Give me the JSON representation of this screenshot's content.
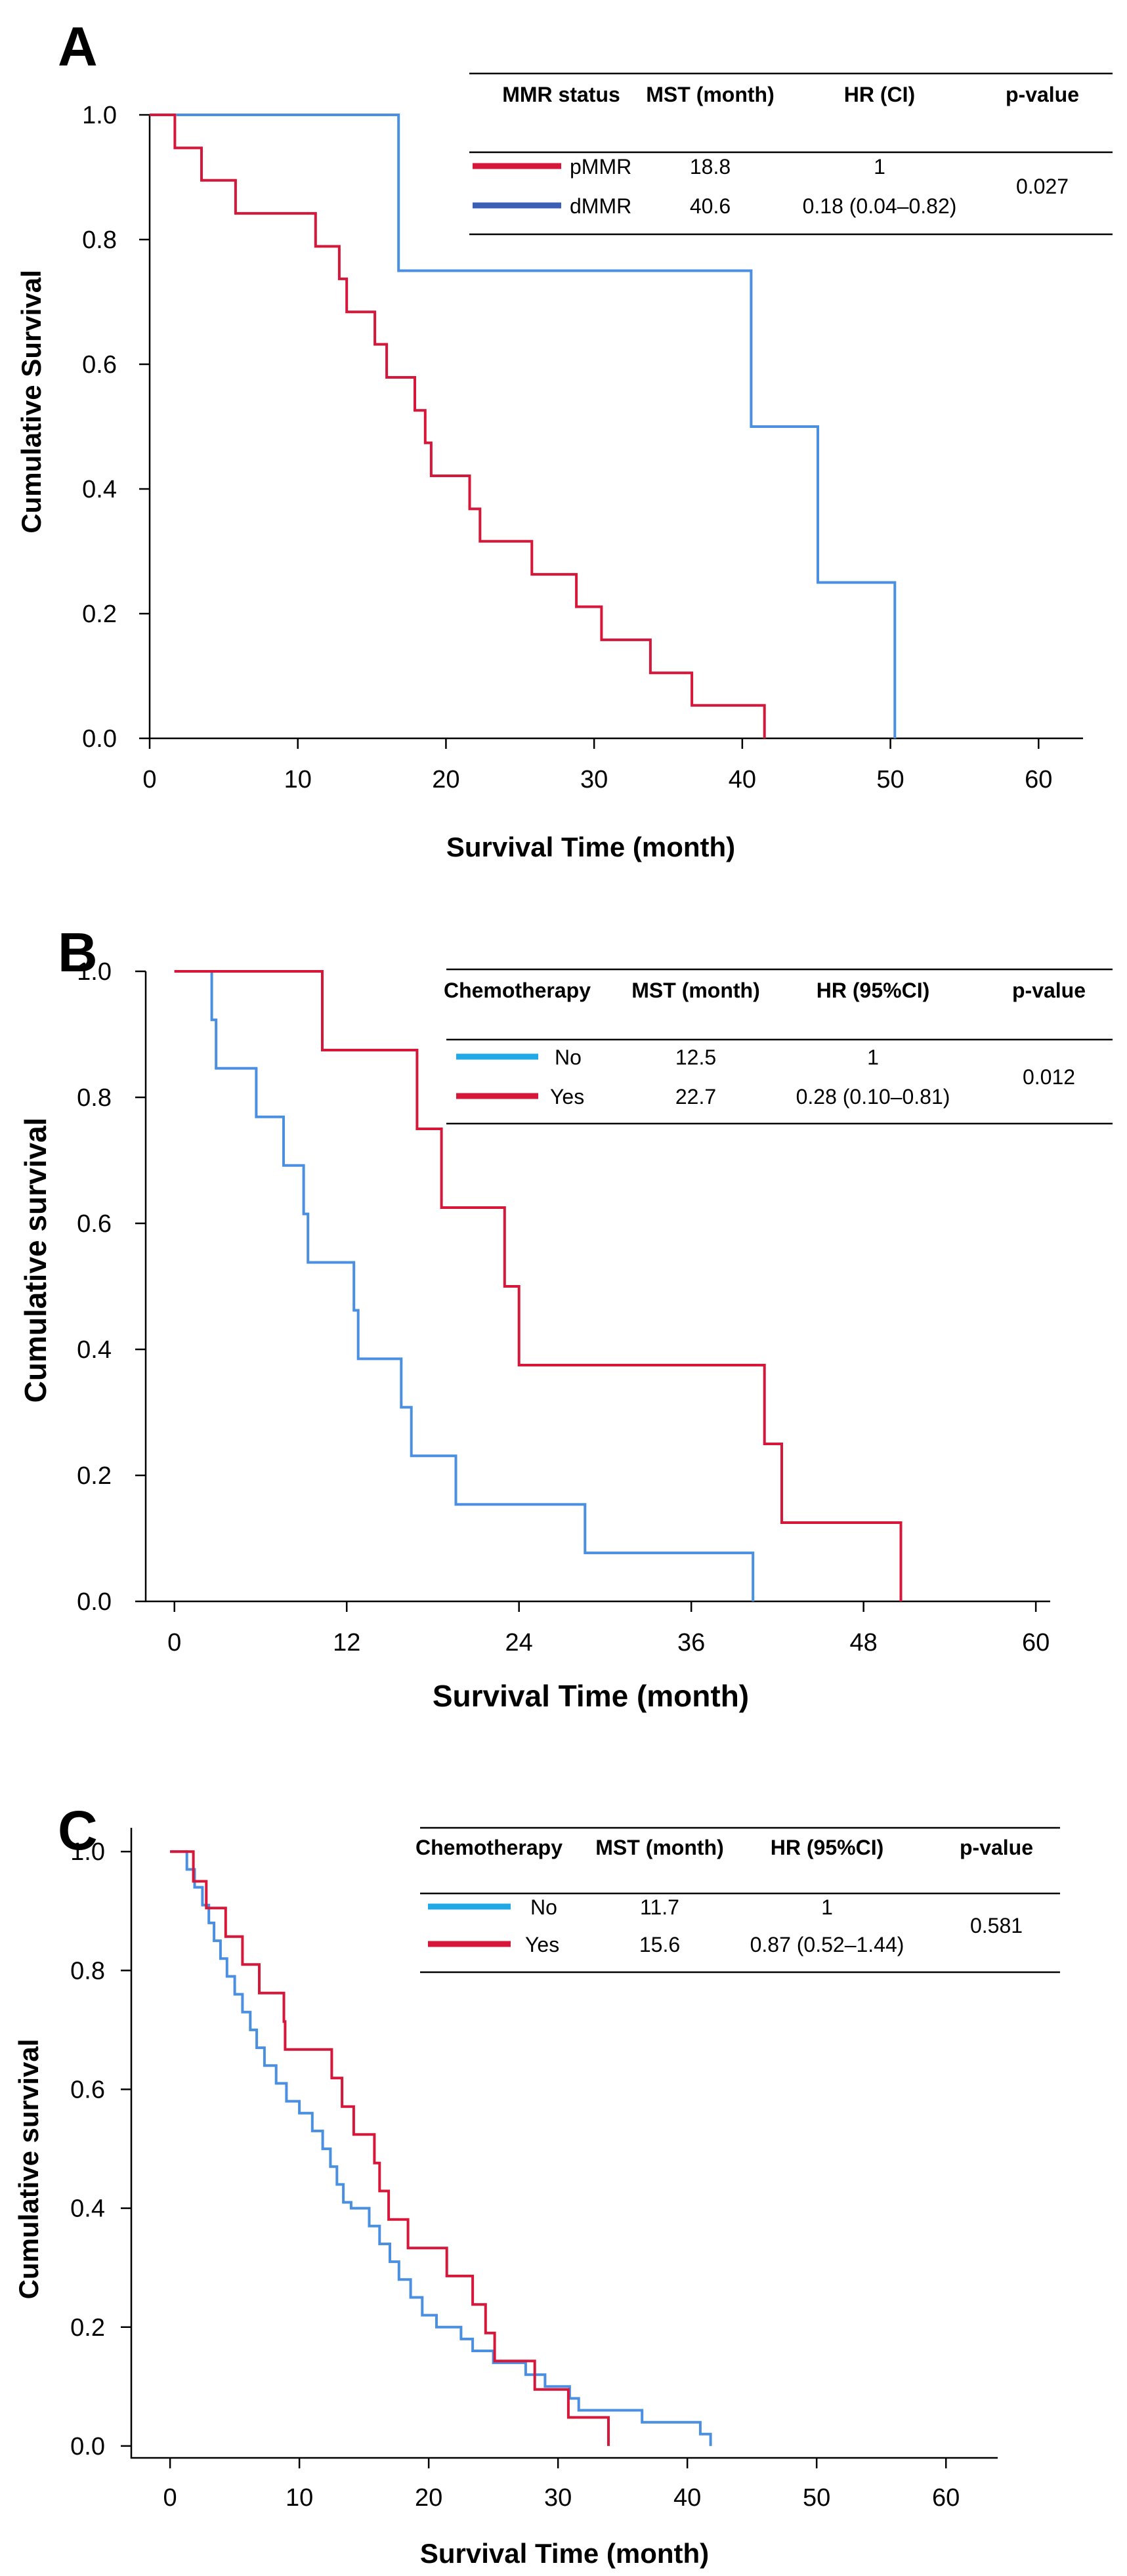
{
  "colors": {
    "red": "#D6173A",
    "blue": "#4A8FE0",
    "cyan": "#21A8E6",
    "navy": "#3A5FB4"
  },
  "chart_data": [
    {
      "panel": "A",
      "type": "line",
      "xlabel": "Survival Time (month)",
      "ylabel": "Cumulative Survival",
      "xlim": [
        0,
        63
      ],
      "ylim": [
        0,
        1
      ],
      "xticks": [
        "0",
        "10",
        "20",
        "30",
        "40",
        "50",
        "60"
      ],
      "yticks": [
        "0.0",
        "0.2",
        "0.4",
        "0.6",
        "0.8",
        "1.0"
      ],
      "legend": {
        "headers": [
          "MMR status",
          "MST (month)",
          "HR (CI)",
          "p-value"
        ],
        "p_value": "0.027",
        "rows": [
          {
            "label": "pMMR",
            "mst": "18.8",
            "hr": "1",
            "color": "#D6173A"
          },
          {
            "label": "dMMR",
            "mst": "40.6",
            "hr": "0.18 (0.04–0.82)",
            "color": "#3A5FB4"
          }
        ]
      },
      "series": [
        {
          "name": "pMMR",
          "color": "#D6173A",
          "points": [
            [
              0,
              1.0
            ],
            [
              1.7,
              1.0
            ],
            [
              1.7,
              0.947
            ],
            [
              3.5,
              0.947
            ],
            [
              3.5,
              0.895
            ],
            [
              5.8,
              0.895
            ],
            [
              5.8,
              0.842
            ],
            [
              11.2,
              0.842
            ],
            [
              11.2,
              0.789
            ],
            [
              12.8,
              0.789
            ],
            [
              12.8,
              0.737
            ],
            [
              13.3,
              0.737
            ],
            [
              13.3,
              0.684
            ],
            [
              15.2,
              0.684
            ],
            [
              15.2,
              0.632
            ],
            [
              16.0,
              0.632
            ],
            [
              16.0,
              0.579
            ],
            [
              17.9,
              0.579
            ],
            [
              17.9,
              0.526
            ],
            [
              18.6,
              0.526
            ],
            [
              18.6,
              0.474
            ],
            [
              19.0,
              0.474
            ],
            [
              19.0,
              0.421
            ],
            [
              21.6,
              0.421
            ],
            [
              21.6,
              0.368
            ],
            [
              22.3,
              0.368
            ],
            [
              22.3,
              0.316
            ],
            [
              25.8,
              0.316
            ],
            [
              25.8,
              0.263
            ],
            [
              28.8,
              0.263
            ],
            [
              28.8,
              0.211
            ],
            [
              30.5,
              0.211
            ],
            [
              30.5,
              0.158
            ],
            [
              33.8,
              0.158
            ],
            [
              33.8,
              0.105
            ],
            [
              36.6,
              0.105
            ],
            [
              36.6,
              0.053
            ],
            [
              41.5,
              0.053
            ],
            [
              41.5,
              0.0
            ]
          ]
        },
        {
          "name": "dMMR",
          "color": "#4A8FE0",
          "points": [
            [
              1.8,
              1.0
            ],
            [
              16.8,
              1.0
            ],
            [
              16.8,
              0.75
            ],
            [
              40.6,
              0.75
            ],
            [
              40.6,
              0.5
            ],
            [
              45.1,
              0.5
            ],
            [
              45.1,
              0.25
            ],
            [
              50.3,
              0.25
            ],
            [
              50.3,
              0.0
            ]
          ]
        }
      ]
    },
    {
      "panel": "B",
      "type": "line",
      "xlabel": "Survival Time (month)",
      "ylabel": "Cumulative survival",
      "xlim": [
        -2,
        61
      ],
      "ylim": [
        0,
        1
      ],
      "xticks": [
        "0",
        "12",
        "24",
        "36",
        "48",
        "60"
      ],
      "yticks": [
        "0.0",
        "0.2",
        "0.4",
        "0.6",
        "0.8",
        "1.0"
      ],
      "legend": {
        "headers": [
          "Chemotherapy",
          "MST (month)",
          "HR (95%CI)",
          "p-value"
        ],
        "p_value": "0.012",
        "rows": [
          {
            "label": "No",
            "mst": "12.5",
            "hr": "1",
            "color": "#21A8E6"
          },
          {
            "label": "Yes",
            "mst": "22.7",
            "hr": "0.28 (0.10–0.81)",
            "color": "#D6173A"
          }
        ]
      },
      "series": [
        {
          "name": "No",
          "color": "#4A8FE0",
          "points": [
            [
              0,
              1.0
            ],
            [
              2.6,
              1.0
            ],
            [
              2.6,
              0.923
            ],
            [
              2.9,
              0.923
            ],
            [
              2.9,
              0.846
            ],
            [
              5.7,
              0.846
            ],
            [
              5.7,
              0.769
            ],
            [
              7.6,
              0.769
            ],
            [
              7.6,
              0.692
            ],
            [
              9.0,
              0.692
            ],
            [
              9.0,
              0.615
            ],
            [
              9.3,
              0.615
            ],
            [
              9.3,
              0.538
            ],
            [
              12.5,
              0.538
            ],
            [
              12.5,
              0.462
            ],
            [
              12.8,
              0.462
            ],
            [
              12.8,
              0.385
            ],
            [
              15.8,
              0.385
            ],
            [
              15.8,
              0.308
            ],
            [
              16.5,
              0.308
            ],
            [
              16.5,
              0.231
            ],
            [
              19.6,
              0.231
            ],
            [
              19.6,
              0.154
            ],
            [
              28.6,
              0.154
            ],
            [
              28.6,
              0.077
            ],
            [
              40.3,
              0.077
            ],
            [
              40.3,
              0.0
            ]
          ]
        },
        {
          "name": "Yes",
          "color": "#D6173A",
          "points": [
            [
              0,
              1.0
            ],
            [
              10.3,
              1.0
            ],
            [
              10.3,
              0.875
            ],
            [
              16.9,
              0.875
            ],
            [
              16.9,
              0.75
            ],
            [
              18.6,
              0.75
            ],
            [
              18.6,
              0.625
            ],
            [
              23.0,
              0.625
            ],
            [
              23.0,
              0.5
            ],
            [
              24.0,
              0.5
            ],
            [
              24.0,
              0.375
            ],
            [
              41.1,
              0.375
            ],
            [
              41.1,
              0.25
            ],
            [
              42.3,
              0.25
            ],
            [
              42.3,
              0.125
            ],
            [
              50.6,
              0.125
            ],
            [
              50.6,
              0.0
            ]
          ]
        }
      ]
    },
    {
      "panel": "C",
      "type": "line",
      "xlabel": "Survival Time (month)",
      "ylabel": "Cumulative survival",
      "xlim": [
        -3,
        64
      ],
      "ylim": [
        -0.02,
        1.04
      ],
      "xticks": [
        "0",
        "10",
        "20",
        "30",
        "40",
        "50",
        "60"
      ],
      "yticks": [
        "0.0",
        "0.2",
        "0.4",
        "0.6",
        "0.8",
        "1.0"
      ],
      "legend": {
        "headers": [
          "Chemotherapy",
          "MST (month)",
          "HR (95%CI)",
          "p-value"
        ],
        "p_value": "0.581",
        "rows": [
          {
            "label": "No",
            "mst": "11.7",
            "hr": "1",
            "color": "#21A8E6"
          },
          {
            "label": "Yes",
            "mst": "15.6",
            "hr": "0.87 (0.52–1.44)",
            "color": "#D6173A"
          }
        ]
      },
      "series": [
        {
          "name": "No",
          "color": "#4A8FE0",
          "points": [
            [
              0,
              1.0
            ],
            [
              1.3,
              1.0
            ],
            [
              1.3,
              0.97
            ],
            [
              1.9,
              0.97
            ],
            [
              1.9,
              0.94
            ],
            [
              2.5,
              0.94
            ],
            [
              2.5,
              0.91
            ],
            [
              3.0,
              0.91
            ],
            [
              3.0,
              0.88
            ],
            [
              3.4,
              0.88
            ],
            [
              3.4,
              0.85
            ],
            [
              3.9,
              0.85
            ],
            [
              3.9,
              0.82
            ],
            [
              4.4,
              0.82
            ],
            [
              4.4,
              0.79
            ],
            [
              5.0,
              0.79
            ],
            [
              5.0,
              0.76
            ],
            [
              5.6,
              0.76
            ],
            [
              5.6,
              0.73
            ],
            [
              6.2,
              0.73
            ],
            [
              6.2,
              0.7
            ],
            [
              6.7,
              0.7
            ],
            [
              6.7,
              0.67
            ],
            [
              7.3,
              0.67
            ],
            [
              7.3,
              0.64
            ],
            [
              8.2,
              0.64
            ],
            [
              8.2,
              0.61
            ],
            [
              9.0,
              0.61
            ],
            [
              9.0,
              0.58
            ],
            [
              10.0,
              0.58
            ],
            [
              10.0,
              0.56
            ],
            [
              11.0,
              0.56
            ],
            [
              11.0,
              0.53
            ],
            [
              11.8,
              0.53
            ],
            [
              11.8,
              0.5
            ],
            [
              12.4,
              0.5
            ],
            [
              12.4,
              0.47
            ],
            [
              12.9,
              0.47
            ],
            [
              12.9,
              0.44
            ],
            [
              13.4,
              0.44
            ],
            [
              13.4,
              0.41
            ],
            [
              14.0,
              0.41
            ],
            [
              14.0,
              0.4
            ],
            [
              15.4,
              0.4
            ],
            [
              15.4,
              0.37
            ],
            [
              16.2,
              0.37
            ],
            [
              16.2,
              0.34
            ],
            [
              17.0,
              0.34
            ],
            [
              17.0,
              0.31
            ],
            [
              17.7,
              0.31
            ],
            [
              17.7,
              0.28
            ],
            [
              18.6,
              0.28
            ],
            [
              18.6,
              0.25
            ],
            [
              19.5,
              0.25
            ],
            [
              19.5,
              0.22
            ],
            [
              20.6,
              0.22
            ],
            [
              20.6,
              0.2
            ],
            [
              22.5,
              0.2
            ],
            [
              22.5,
              0.18
            ],
            [
              23.4,
              0.18
            ],
            [
              23.4,
              0.16
            ],
            [
              25.0,
              0.16
            ],
            [
              25.0,
              0.14
            ],
            [
              27.5,
              0.14
            ],
            [
              27.5,
              0.12
            ],
            [
              29.0,
              0.12
            ],
            [
              29.0,
              0.1
            ],
            [
              30.9,
              0.1
            ],
            [
              30.9,
              0.08
            ],
            [
              31.6,
              0.08
            ],
            [
              31.6,
              0.06
            ],
            [
              36.5,
              0.06
            ],
            [
              36.5,
              0.04
            ],
            [
              41.0,
              0.04
            ],
            [
              41.0,
              0.02
            ],
            [
              41.8,
              0.02
            ],
            [
              41.8,
              0.0
            ]
          ]
        },
        {
          "name": "Yes",
          "color": "#D6173A",
          "points": [
            [
              0,
              1.0
            ],
            [
              1.8,
              1.0
            ],
            [
              1.8,
              0.95
            ],
            [
              2.8,
              0.95
            ],
            [
              2.8,
              0.905
            ],
            [
              4.3,
              0.905
            ],
            [
              4.3,
              0.857
            ],
            [
              5.6,
              0.857
            ],
            [
              5.6,
              0.81
            ],
            [
              6.9,
              0.81
            ],
            [
              6.9,
              0.762
            ],
            [
              8.8,
              0.762
            ],
            [
              8.8,
              0.714
            ],
            [
              8.9,
              0.714
            ],
            [
              8.9,
              0.667
            ],
            [
              12.5,
              0.667
            ],
            [
              12.5,
              0.619
            ],
            [
              13.3,
              0.619
            ],
            [
              13.3,
              0.571
            ],
            [
              14.2,
              0.571
            ],
            [
              14.2,
              0.524
            ],
            [
              15.8,
              0.524
            ],
            [
              15.8,
              0.476
            ],
            [
              16.2,
              0.476
            ],
            [
              16.2,
              0.429
            ],
            [
              16.9,
              0.429
            ],
            [
              16.9,
              0.381
            ],
            [
              18.4,
              0.381
            ],
            [
              18.4,
              0.333
            ],
            [
              21.4,
              0.333
            ],
            [
              21.4,
              0.286
            ],
            [
              23.4,
              0.286
            ],
            [
              23.4,
              0.238
            ],
            [
              24.4,
              0.238
            ],
            [
              24.4,
              0.19
            ],
            [
              25.1,
              0.19
            ],
            [
              25.1,
              0.143
            ],
            [
              28.2,
              0.143
            ],
            [
              28.2,
              0.095
            ],
            [
              30.8,
              0.095
            ],
            [
              30.8,
              0.048
            ],
            [
              33.9,
              0.048
            ],
            [
              33.9,
              0.0
            ]
          ]
        }
      ]
    }
  ]
}
